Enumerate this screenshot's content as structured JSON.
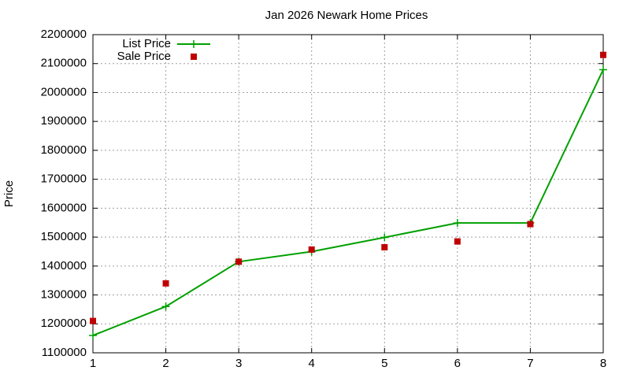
{
  "chart_data": {
    "type": "line",
    "title": "Jan 2026 Newark Home Prices",
    "y_label": "Price",
    "x": [
      1,
      2,
      3,
      4,
      5,
      6,
      7,
      8
    ],
    "series": [
      {
        "name": "List Price",
        "color": "#00a000",
        "mode": "lines+markers",
        "values": [
          1160000,
          1260000,
          1415000,
          1450000,
          1499000,
          1549000,
          1549000,
          2079000
        ]
      },
      {
        "name": "Sale Price",
        "color": "#c00000",
        "mode": "markers",
        "values": [
          1210000,
          1340000,
          1415000,
          1457000,
          1465000,
          1485000,
          1545000,
          2130000
        ]
      }
    ],
    "xlim": [
      1,
      8
    ],
    "xticks": [
      1,
      2,
      3,
      4,
      5,
      6,
      7,
      8
    ],
    "ylim": [
      1100000,
      2200000
    ],
    "yticks": [
      1100000,
      1200000,
      1300000,
      1400000,
      1500000,
      1600000,
      1700000,
      1800000,
      1900000,
      2000000,
      2100000,
      2200000
    ],
    "grid": true,
    "legend": "top-left"
  }
}
